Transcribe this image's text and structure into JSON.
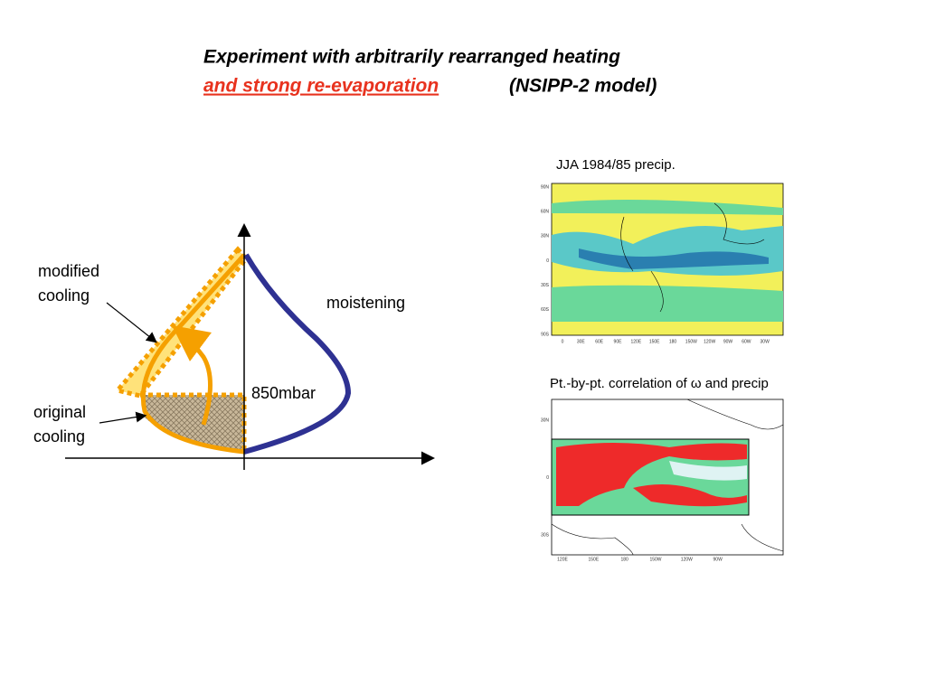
{
  "title": {
    "line1": "Experiment with arbitrarily rearranged heating",
    "line2_highlight": "and strong re-evaporation",
    "line2_rest": "(NSIPP-2 model)"
  },
  "diagram": {
    "modified_cooling": [
      "modified",
      "cooling"
    ],
    "moistening": "moistening",
    "level": "850mbar",
    "original_cooling": [
      "original",
      "cooling"
    ]
  },
  "maps": [
    {
      "caption": "JJA 1984/85 precip.",
      "lat_labels": [
        "90N",
        "60N",
        "30N",
        "0",
        "30S",
        "60S",
        "90S"
      ],
      "lon_labels": [
        "0",
        "30E",
        "60E",
        "90E",
        "120E",
        "150E",
        "180",
        "150W",
        "120W",
        "90W",
        "60W",
        "30W"
      ]
    },
    {
      "caption": "Pt.-by-pt. correlation of ω and precip",
      "lat_labels": [
        "30N",
        "0",
        "30S"
      ],
      "lon_labels": [
        "120E",
        "150E",
        "180",
        "150W",
        "120W",
        "90W"
      ]
    }
  ]
}
